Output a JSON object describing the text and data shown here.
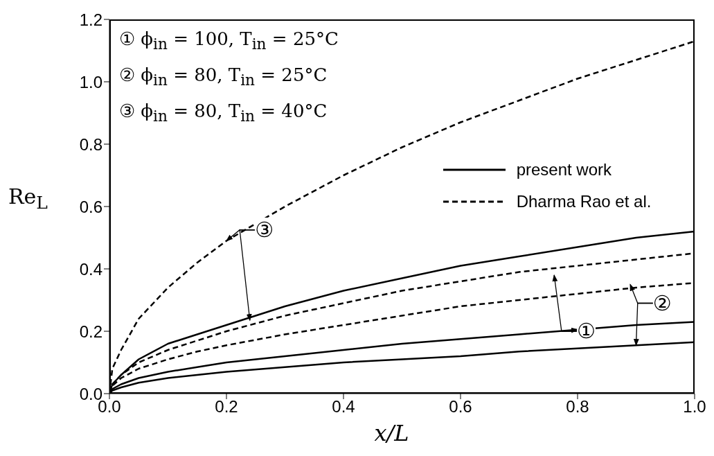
{
  "chart_data": {
    "type": "line",
    "xlabel": "x/L",
    "ylabel": "Re$_{L}$",
    "x": [
      0,
      0.005,
      0.02,
      0.05,
      0.1,
      0.15,
      0.2,
      0.3,
      0.4,
      0.5,
      0.6,
      0.7,
      0.8,
      0.9,
      1.0
    ],
    "series": [
      {
        "name": "present work",
        "color": "#000000",
        "line_style": "solid",
        "values": [
          0,
          0.03,
          0.06,
          0.11,
          0.16,
          0.19,
          0.22,
          0.28,
          0.33,
          0.37,
          0.41,
          0.44,
          0.47,
          0.5,
          0.52
        ]
      },
      {
        "color": "#000000",
        "line_style": "solid",
        "values": [
          0,
          0.015,
          0.03,
          0.05,
          0.07,
          0.085,
          0.1,
          0.12,
          0.14,
          0.16,
          0.175,
          0.19,
          0.205,
          0.22,
          0.23
        ]
      },
      {
        "color": "#000000",
        "line_style": "solid",
        "values": [
          0,
          0.01,
          0.02,
          0.035,
          0.05,
          0.06,
          0.07,
          0.085,
          0.1,
          0.11,
          0.12,
          0.135,
          0.145,
          0.155,
          0.165
        ]
      },
      {
        "name": "Dharma Rao et al.",
        "color": "#000000",
        "line_style": "dashed",
        "values": [
          0,
          0.08,
          0.14,
          0.24,
          0.34,
          0.42,
          0.49,
          0.6,
          0.7,
          0.79,
          0.87,
          0.94,
          1.01,
          1.07,
          1.13
        ]
      },
      {
        "color": "#000000",
        "line_style": "dashed",
        "values": [
          0,
          0.03,
          0.06,
          0.1,
          0.14,
          0.17,
          0.2,
          0.25,
          0.29,
          0.33,
          0.36,
          0.39,
          0.41,
          0.43,
          0.45
        ]
      },
      {
        "color": "#000000",
        "line_style": "dashed",
        "values": [
          0,
          0.025,
          0.05,
          0.08,
          0.11,
          0.135,
          0.155,
          0.19,
          0.22,
          0.25,
          0.28,
          0.3,
          0.32,
          0.34,
          0.355
        ]
      }
    ],
    "xlim": [
      0,
      1
    ],
    "ylim": [
      0,
      1.2
    ],
    "xticks": [
      {
        "value": 0,
        "label": "0.0"
      },
      {
        "value": 0.2,
        "label": "0.2"
      },
      {
        "value": 0.4,
        "label": "0.4"
      },
      {
        "value": 0.6,
        "label": "0.6"
      },
      {
        "value": 0.8,
        "label": "0.8"
      },
      {
        "value": 1,
        "label": "1.0"
      }
    ],
    "yticks": [
      {
        "value": 0,
        "label": "0.0"
      },
      {
        "value": 0.2,
        "label": "0.2"
      },
      {
        "value": 0.4,
        "label": "0.4"
      },
      {
        "value": 0.6,
        "label": "0.6"
      },
      {
        "value": 0.8,
        "label": "0.8"
      },
      {
        "value": 1,
        "label": "1.0"
      },
      {
        "value": 1.2,
        "label": "1.2"
      }
    ],
    "grid": false,
    "legend": "right",
    "annotations": [
      "① ϕ$_{in}$ = 100, T$_{in}$ = 25°C",
      "② ϕ$_{in}$ = 80, T$_{in}$ = 25°C",
      "③ ϕ$_{in}$ = 80, T$_{in}$ = 40°C",
      {
        "text": "③",
        "x": 0.2,
        "y": 0.49
      },
      {
        "text": "①",
        "x": 0.8,
        "y": 0.205
      },
      {
        "text": "②",
        "x": 0.9,
        "y": 0.155
      }
    ]
  }
}
